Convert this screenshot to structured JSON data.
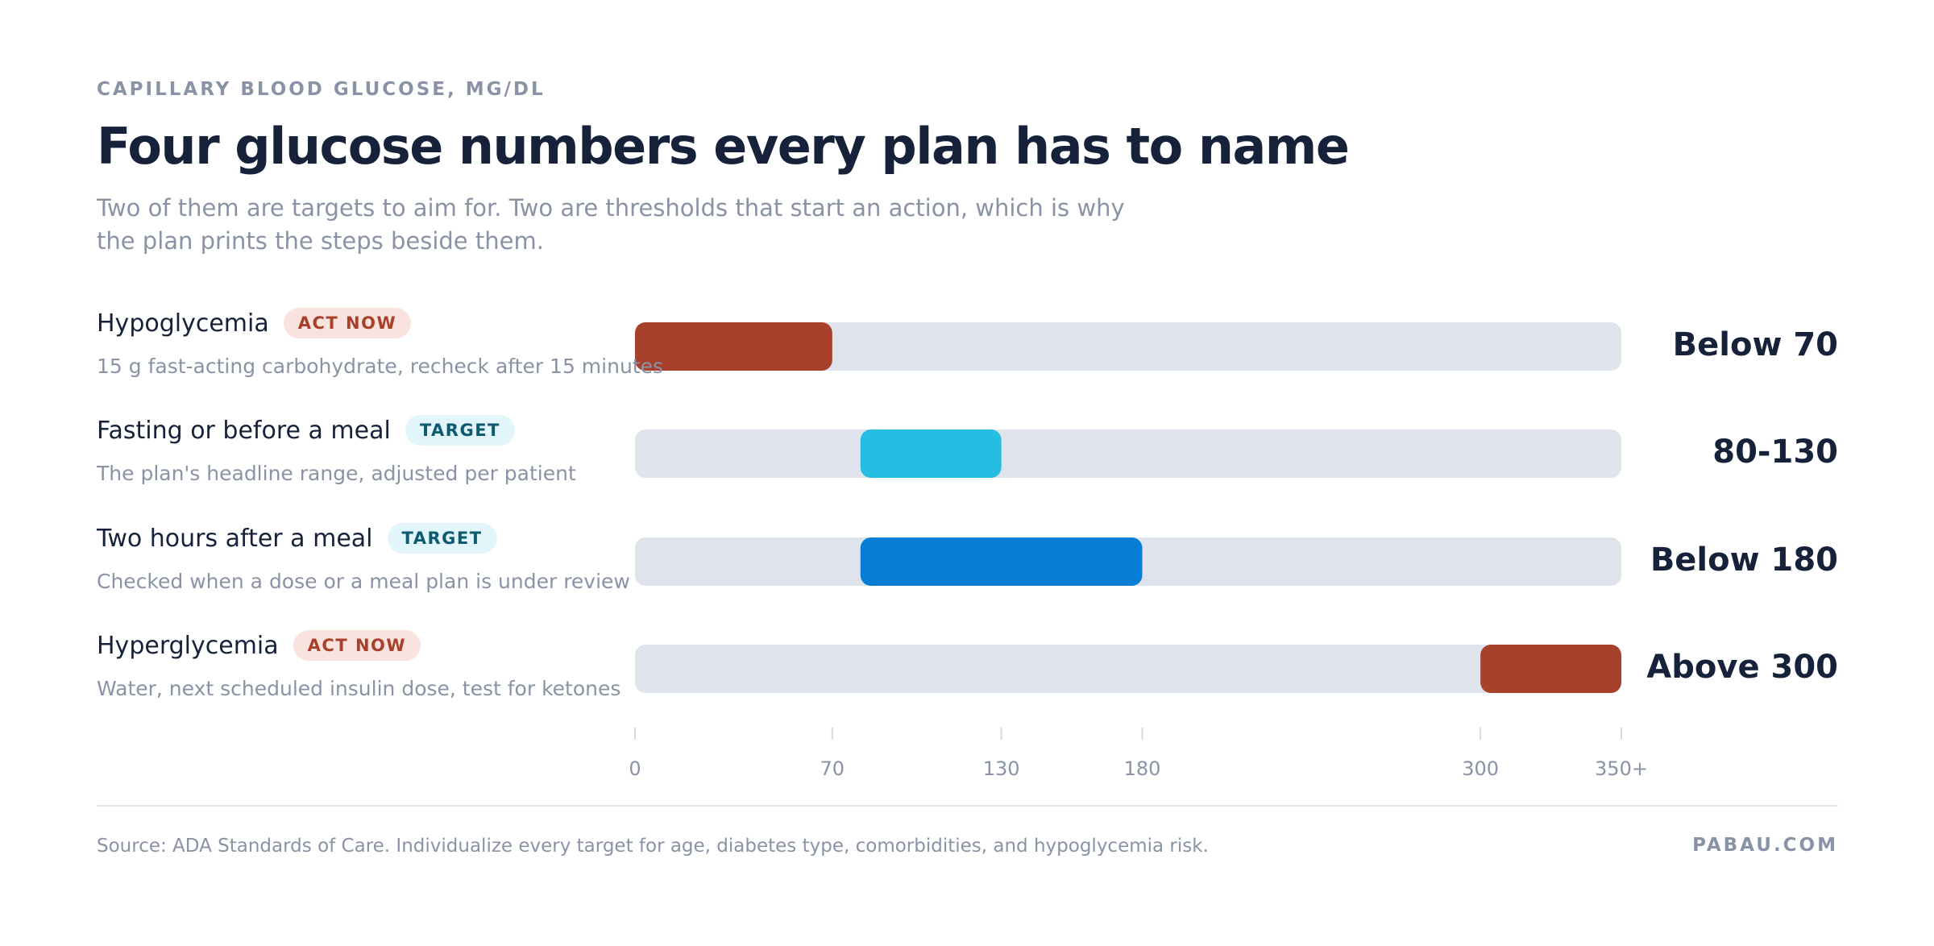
{
  "chart_data": {
    "type": "range",
    "eyebrow": "CAPILLARY BLOOD GLUCOSE, MG/DL",
    "title": "Four glucose numbers every plan has to name",
    "subtitle": "Two of them are targets to aim for. Two are thresholds that start an action, which is why the plan prints the steps beside them.",
    "categories": [
      "Hypoglycemia",
      "Fasting or before a meal",
      "Two hours after a meal",
      "Hyperglycemia"
    ],
    "notes": [
      "15 g fast-acting carbohydrate, recheck after 15 minutes",
      "The plan's headline range, adjusted per patient",
      "Checked when a dose or a meal plan is under review",
      "Water, next scheduled insulin dose, test for ketones"
    ],
    "badges": [
      {
        "label": "ACT NOW",
        "color": "#a8412b",
        "background": "#f9e3de"
      },
      {
        "label": "TARGET",
        "color": "#0e5a6e",
        "background": "#e2f5fb"
      },
      {
        "label": "TARGET",
        "color": "#0e5a6e",
        "background": "#e2f5fb"
      },
      {
        "label": "ACT NOW",
        "color": "#a8412b",
        "background": "#f9e3de"
      }
    ],
    "starts": [
      0,
      80,
      80,
      300
    ],
    "ends": [
      70,
      130,
      180,
      350
    ],
    "colors": [
      "#a8412b",
      "#27bde2",
      "#087dd6",
      "#a8412b"
    ],
    "track_color": "#dfe3ec",
    "value_labels": [
      "Below 70",
      "80-130",
      "Below 180",
      "Above 300"
    ],
    "xlim": [
      0,
      350
    ],
    "xticks": [
      0,
      70,
      130,
      180,
      300,
      {
        "value": 350,
        "label": "350+"
      }
    ],
    "source": "Source: ADA Standards of Care. Individualize every target for age, diabetes type, comorbidities, and hypoglycemia risk.",
    "brand": "PABAU.COM"
  }
}
